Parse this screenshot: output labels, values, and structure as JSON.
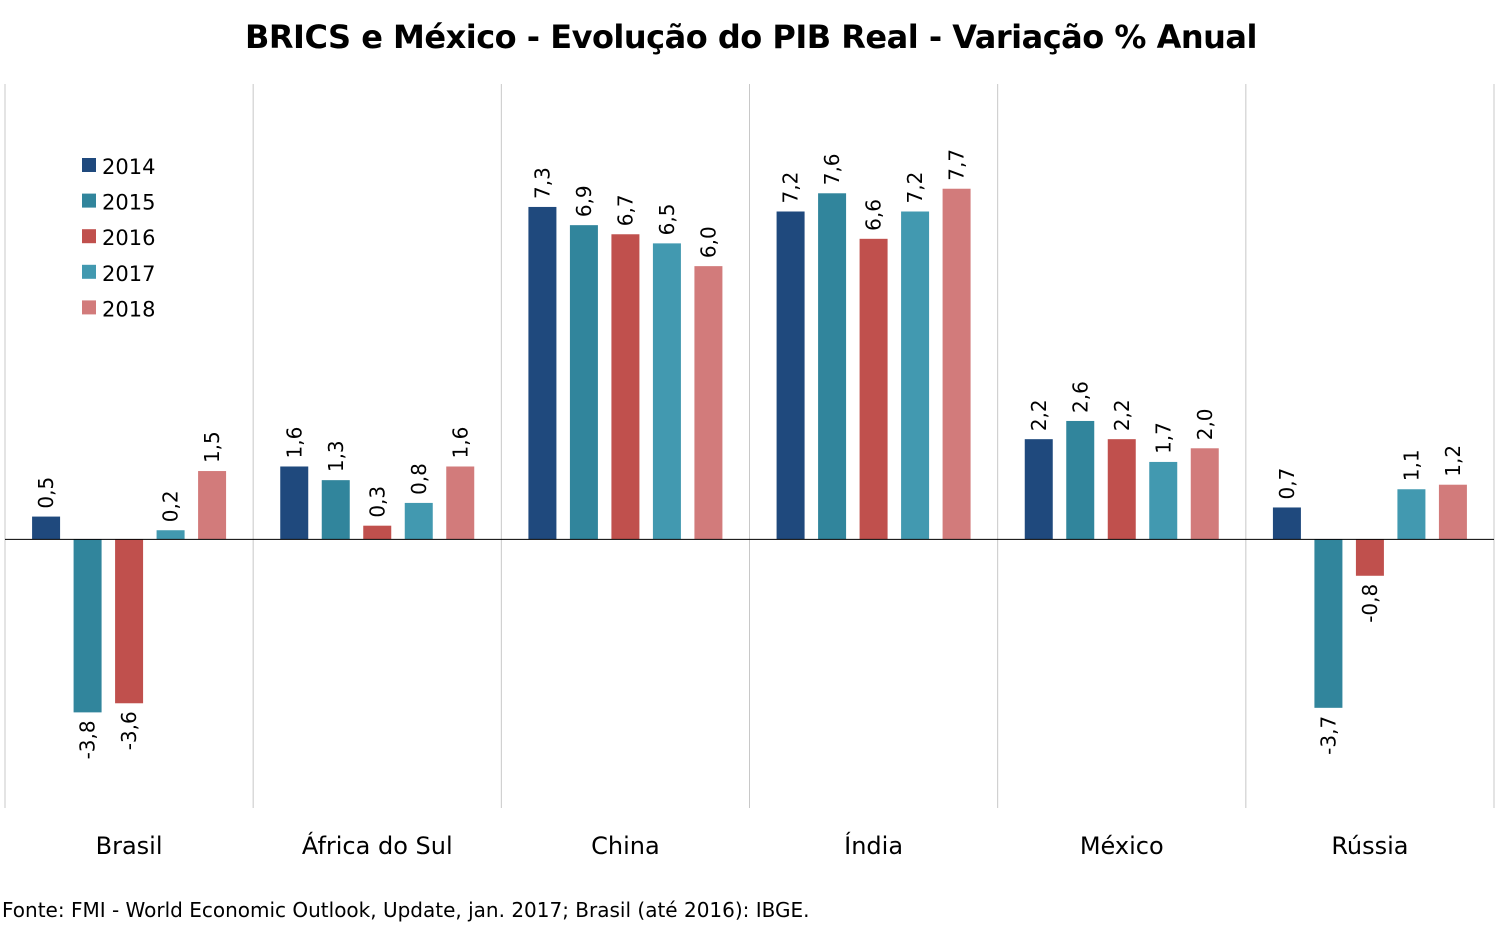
{
  "chart_data": {
    "type": "bar",
    "title": "BRICS e México - Evolução do PIB Real - Variação % Anual",
    "source": "Fonte: FMI - World Economic Outlook, Update, jan. 2017; Brasil (até 2016): IBGE.",
    "categories": [
      "Brasil",
      "África do Sul",
      "China",
      "Índia",
      "México",
      "Rússia"
    ],
    "series": [
      {
        "name": "2014",
        "color": "#1F497D",
        "values": [
          0.5,
          1.6,
          7.3,
          7.2,
          2.2,
          0.7
        ],
        "labels": [
          "0,5",
          "1,6",
          "7,3",
          "7,2",
          "2,2",
          "0,7"
        ]
      },
      {
        "name": "2015",
        "color": "#31859C",
        "values": [
          -3.8,
          1.3,
          6.9,
          7.6,
          2.6,
          -3.7
        ],
        "labels": [
          "-3,8",
          "1,3",
          "6,9",
          "7,6",
          "2,6",
          "-3,7"
        ]
      },
      {
        "name": "2016",
        "color": "#C0504D",
        "values": [
          -3.6,
          0.3,
          6.7,
          6.6,
          2.2,
          -0.8
        ],
        "labels": [
          "-3,6",
          "0,3",
          "6,7",
          "6,6",
          "2,2",
          "-0,8"
        ]
      },
      {
        "name": "2017",
        "color": "#4299B0",
        "values": [
          0.2,
          0.8,
          6.5,
          7.2,
          1.7,
          1.1
        ],
        "labels": [
          "0,2",
          "0,8",
          "6,5",
          "7,2",
          "1,7",
          "1,1"
        ]
      },
      {
        "name": "2018",
        "color": "#D27B7B",
        "values": [
          1.5,
          1.6,
          6.0,
          7.7,
          2.0,
          1.2
        ],
        "labels": [
          "1,5",
          "1,6",
          "6,0",
          "7,7",
          "2,0",
          "1,2"
        ]
      }
    ],
    "ylim": [
      -5.9,
      10.0
    ],
    "grid": false,
    "category_separators": true,
    "legend_position": "top-left"
  }
}
